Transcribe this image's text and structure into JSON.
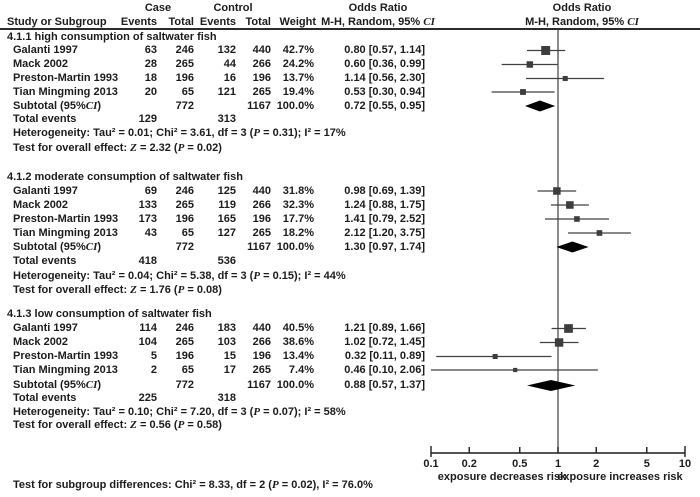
{
  "figure": {
    "header": {
      "case_label": "Case",
      "control_label": "Control",
      "odds_ratio_left": "Odds Ratio",
      "odds_ratio_right": "Odds Ratio",
      "study_col": "Study or Subgroup",
      "events_col_case": "Events",
      "total_col_case": "Total",
      "events_col_control": "Events",
      "total_col_control": "Total",
      "weight_col": "Weight",
      "method_col_left": "M-H, Random, 95% CI",
      "method_col_right": "M-H, Random, 95% CI"
    }
  },
  "chart_data": {
    "type": "forest",
    "effect_measure": "Odds Ratio",
    "x_axis": {
      "scale": "log",
      "min": 0.1,
      "max": 10,
      "ticks": [
        0.1,
        0.2,
        0.5,
        1,
        2,
        5,
        10
      ],
      "left_label": "exposure decreases risk",
      "right_label": "exposure increases risk"
    },
    "sections": [
      {
        "title": "4.1.1 high consumption of saltwater fish",
        "studies": [
          {
            "name": "Galanti 1997",
            "case_events": 63,
            "case_total": 246,
            "control_events": 132,
            "control_total": 440,
            "weight": "42.7%",
            "or": 0.8,
            "lo": 0.57,
            "hi": 1.14,
            "or_text": "0.80 [0.57, 1.14]"
          },
          {
            "name": "Mack 2002",
            "case_events": 28,
            "case_total": 265,
            "control_events": 44,
            "control_total": 266,
            "weight": "24.2%",
            "or": 0.6,
            "lo": 0.36,
            "hi": 0.99,
            "or_text": "0.60 [0.36, 0.99]"
          },
          {
            "name": "Preston-Martin 1993",
            "case_events": 18,
            "case_total": 196,
            "control_events": 16,
            "control_total": 196,
            "weight": "13.7%",
            "or": 1.14,
            "lo": 0.56,
            "hi": 2.3,
            "or_text": "1.14 [0.56, 2.30]"
          },
          {
            "name": "Tian Mingming 2013",
            "case_events": 20,
            "case_total": 65,
            "control_events": 121,
            "control_total": 265,
            "weight": "19.4%",
            "or": 0.53,
            "lo": 0.3,
            "hi": 0.94,
            "or_text": "0.53 [0.30, 0.94]"
          }
        ],
        "subtotal": {
          "label": "Subtotal (95%CI)",
          "case_total": 772,
          "control_total": 1167,
          "weight": "100.0%",
          "or": 0.72,
          "lo": 0.55,
          "hi": 0.95,
          "or_text": "0.72 [0.55, 0.95]"
        },
        "total_events": {
          "label": "Total events",
          "case": 129,
          "control": 313
        },
        "heterogeneity": "Heterogeneity: Tau² = 0.01; Chi² = 3.61, df = 3 (P = 0.31); I² = 17%",
        "overall": "Test for overall effect: Z = 2.32 (P = 0.02)"
      },
      {
        "title": "4.1.2 moderate consumption of saltwater fish",
        "studies": [
          {
            "name": "Galanti 1997",
            "case_events": 69,
            "case_total": 246,
            "control_events": 125,
            "control_total": 440,
            "weight": "31.8%",
            "or": 0.98,
            "lo": 0.69,
            "hi": 1.39,
            "or_text": "0.98 [0.69, 1.39]"
          },
          {
            "name": "Mack 2002",
            "case_events": 133,
            "case_total": 265,
            "control_events": 119,
            "control_total": 266,
            "weight": "32.3%",
            "or": 1.24,
            "lo": 0.88,
            "hi": 1.75,
            "or_text": "1.24 [0.88, 1.75]"
          },
          {
            "name": "Preston-Martin 1993",
            "case_events": 173,
            "case_total": 196,
            "control_events": 165,
            "control_total": 196,
            "weight": "17.7%",
            "or": 1.41,
            "lo": 0.79,
            "hi": 2.52,
            "or_text": "1.41 [0.79, 2.52]"
          },
          {
            "name": "Tian Mingming 2013",
            "case_events": 43,
            "case_total": 65,
            "control_events": 127,
            "control_total": 265,
            "weight": "18.2%",
            "or": 2.12,
            "lo": 1.2,
            "hi": 3.75,
            "or_text": "2.12 [1.20, 3.75]"
          }
        ],
        "subtotal": {
          "label": "Subtotal (95%CI)",
          "case_total": 772,
          "control_total": 1167,
          "weight": "100.0%",
          "or": 1.3,
          "lo": 0.97,
          "hi": 1.74,
          "or_text": "1.30 [0.97, 1.74]"
        },
        "total_events": {
          "label": "Total events",
          "case": 418,
          "control": 536
        },
        "heterogeneity": "Heterogeneity: Tau² = 0.04; Chi² = 5.38, df = 3 (P = 0.15); I² = 44%",
        "overall": "Test for overall effect: Z = 1.76 (P = 0.08)"
      },
      {
        "title": "4.1.3 low consumption of saltwater fish",
        "studies": [
          {
            "name": "Galanti 1997",
            "case_events": 114,
            "case_total": 246,
            "control_events": 183,
            "control_total": 440,
            "weight": "40.5%",
            "or": 1.21,
            "lo": 0.89,
            "hi": 1.66,
            "or_text": "1.21 [0.89, 1.66]"
          },
          {
            "name": "Mack 2002",
            "case_events": 104,
            "case_total": 265,
            "control_events": 103,
            "control_total": 266,
            "weight": "38.6%",
            "or": 1.02,
            "lo": 0.72,
            "hi": 1.45,
            "or_text": "1.02 [0.72, 1.45]"
          },
          {
            "name": "Preston-Martin 1993",
            "case_events": 5,
            "case_total": 196,
            "control_events": 15,
            "control_total": 196,
            "weight": "13.4%",
            "or": 0.32,
            "lo": 0.11,
            "hi": 0.89,
            "or_text": "0.32 [0.11, 0.89]"
          },
          {
            "name": "Tian Mingming 2013",
            "case_events": 2,
            "case_total": 65,
            "control_events": 17,
            "control_total": 265,
            "weight": "7.4%",
            "or": 0.46,
            "lo": 0.1,
            "hi": 2.06,
            "or_text": "0.46 [0.10, 2.06]"
          }
        ],
        "subtotal": {
          "label": "Subtotal (95%CI)",
          "case_total": 772,
          "control_total": 1167,
          "weight": "100.0%",
          "or": 0.88,
          "lo": 0.57,
          "hi": 1.37,
          "or_text": "0.88 [0.57, 1.37]"
        },
        "total_events": {
          "label": "Total events",
          "case": 225,
          "control": 318
        },
        "heterogeneity": "Heterogeneity: Tau² = 0.10; Chi² = 7.20, df = 3 (P = 0.07); I² = 58%",
        "overall": "Test for overall effect: Z = 0.56 (P = 0.58)"
      }
    ],
    "footer": "Test for subgroup differences: Chi² = 8.33, df = 2 (P = 0.02), I² = 76.0%"
  },
  "colors": {
    "text": "#1c1c1c",
    "ci_line": "#404040",
    "square": "#3d3d3d",
    "diamond": "#000000",
    "axis": "#1c1c1c",
    "header_rule": "#2b2b2b"
  }
}
